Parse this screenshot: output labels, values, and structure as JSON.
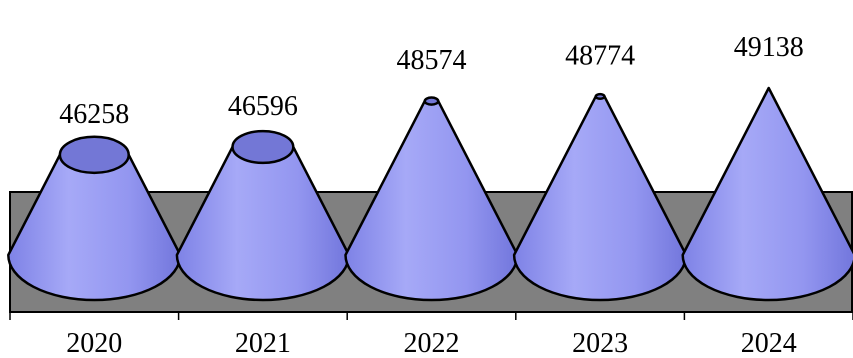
{
  "chart_data": {
    "type": "bar",
    "style": "3d-cone",
    "categories": [
      "2020",
      "2021",
      "2022",
      "2023",
      "2024"
    ],
    "values": [
      46258,
      46596,
      48574,
      48774,
      49138
    ],
    "ylim": [
      40000,
      49138
    ],
    "grid": false,
    "legend": "none"
  },
  "colors": {
    "cone_fill": "#8E92F0",
    "cone_light": "#A9ACF8",
    "cone_dark": "#6E72D8",
    "cone_top": "#7377D6",
    "floor": "#808080",
    "outline": "#000000"
  }
}
